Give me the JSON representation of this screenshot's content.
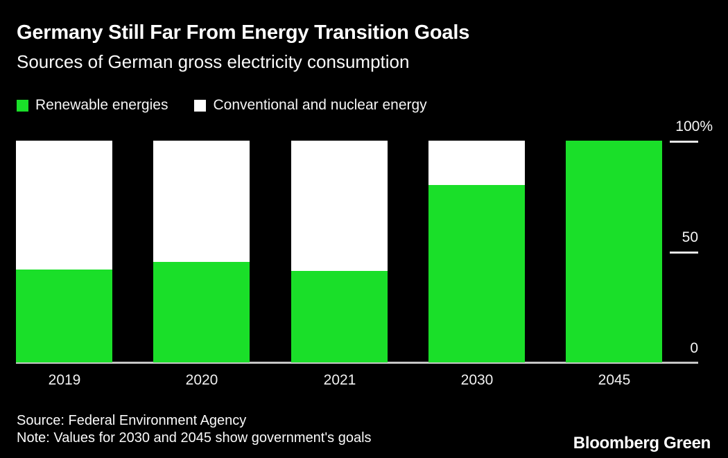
{
  "header": {
    "title": "Germany Still Far From Energy Transition Goals",
    "subtitle": "Sources of German gross electricity consumption"
  },
  "colors": {
    "background": "#000000",
    "renewable_green": "#1ADF29",
    "conventional_white": "#FFFFFF",
    "axis_line": "#C6C6C6",
    "tick_line": "#E6E6E6",
    "text": "#FFFFFF"
  },
  "chart_data": {
    "type": "bar",
    "stacked": true,
    "categories": [
      "2019",
      "2020",
      "2021",
      "2030",
      "2045"
    ],
    "series": [
      {
        "name": "Renewable energies",
        "color": "#1ADF29",
        "values": [
          42,
          45.2,
          41.1,
          80,
          100
        ]
      },
      {
        "name": "Conventional and nuclear energy",
        "color": "#FFFFFF",
        "values": [
          58,
          54.8,
          58.9,
          20,
          0
        ]
      }
    ],
    "title": "Germany Still Far From Energy Transition Goals",
    "subtitle": "Sources of German gross electricity consumption",
    "xlabel": "",
    "ylabel": "",
    "ylim": [
      0,
      100
    ],
    "yticks": [
      {
        "value": 100,
        "label": "100%"
      },
      {
        "value": 50,
        "label": "50"
      },
      {
        "value": 0,
        "label": "0"
      }
    ],
    "grid": false,
    "legend_position": "top-left",
    "y_axis_side": "right"
  },
  "legend": [
    {
      "label": "Renewable energies",
      "color": "#1ADF29"
    },
    {
      "label": "Conventional and nuclear energy",
      "color": "#FFFFFF"
    }
  ],
  "footer": {
    "source": "Source: Federal Environment Agency",
    "note": "Note: Values for 2030 and 2045 show government's goals",
    "brand": "Bloomberg Green"
  }
}
